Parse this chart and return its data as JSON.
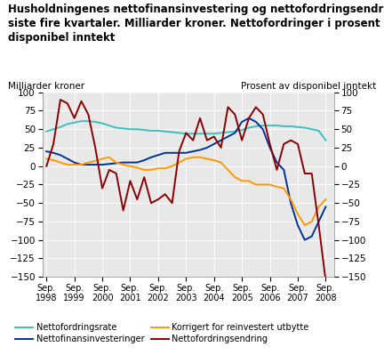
{
  "title_line1": "Husholdningenes nettofinansinvestering og nettofordringsendring",
  "title_line2": "siste fire kvartaler. Milliarder kroner. Nettofordringer i prosent av",
  "title_line3": "disponibel inntekt",
  "ylabel_left": "Milliarder kroner",
  "ylabel_right": "Prosent av disponibel inntekt",
  "x": [
    1998.75,
    1999.0,
    1999.25,
    1999.5,
    1999.75,
    2000.0,
    2000.25,
    2000.5,
    2000.75,
    2001.0,
    2001.25,
    2001.5,
    2001.75,
    2002.0,
    2002.25,
    2002.5,
    2002.75,
    2003.0,
    2003.25,
    2003.5,
    2003.75,
    2004.0,
    2004.25,
    2004.5,
    2004.75,
    2005.0,
    2005.25,
    2005.5,
    2005.75,
    2006.0,
    2006.25,
    2006.5,
    2006.75,
    2007.0,
    2007.25,
    2007.5,
    2007.75,
    2008.0,
    2008.25,
    2008.5,
    2008.75
  ],
  "nettofordringsrate": [
    47,
    50,
    53,
    57,
    59,
    61,
    61,
    60,
    58,
    55,
    52,
    51,
    50,
    50,
    49,
    48,
    48,
    47,
    46,
    45,
    44,
    44,
    44,
    44,
    44,
    45,
    46,
    47,
    49,
    52,
    54,
    55,
    55,
    55,
    54,
    54,
    53,
    52,
    50,
    48,
    35
  ],
  "nettofinansinvesteringer": [
    20,
    18,
    15,
    10,
    5,
    2,
    2,
    2,
    2,
    3,
    4,
    5,
    5,
    5,
    8,
    12,
    15,
    18,
    18,
    18,
    18,
    20,
    22,
    25,
    30,
    35,
    40,
    45,
    60,
    65,
    60,
    50,
    25,
    5,
    -5,
    -50,
    -80,
    -100,
    -95,
    -75,
    -55
  ],
  "korrigert": [
    10,
    8,
    5,
    2,
    2,
    2,
    5,
    7,
    10,
    12,
    5,
    2,
    0,
    -2,
    -5,
    -5,
    -3,
    -3,
    0,
    5,
    10,
    12,
    12,
    10,
    8,
    5,
    -5,
    -15,
    -20,
    -20,
    -25,
    -25,
    -25,
    -28,
    -30,
    -45,
    -65,
    -80,
    -75,
    -55,
    -45
  ],
  "nettofordringsendring": [
    0,
    30,
    90,
    85,
    65,
    88,
    70,
    25,
    -30,
    -5,
    -10,
    -60,
    -20,
    -45,
    -15,
    -50,
    -45,
    -38,
    -50,
    20,
    45,
    35,
    65,
    35,
    40,
    25,
    80,
    70,
    35,
    65,
    80,
    70,
    30,
    -5,
    30,
    35,
    30,
    -10,
    -10,
    -80,
    -155
  ],
  "ylim": [
    -150,
    100
  ],
  "yticks": [
    -150,
    -125,
    -100,
    -75,
    -50,
    -25,
    0,
    25,
    50,
    75,
    100
  ],
  "xlim": [
    1998.6,
    2009.05
  ],
  "xtick_years": [
    1998,
    1999,
    2000,
    2001,
    2002,
    2003,
    2004,
    2005,
    2006,
    2007,
    2008
  ],
  "colors": {
    "nettofordringsrate": "#40bfbf",
    "nettofinansinvesteringer": "#003399",
    "korrigert": "#ff9900",
    "nettofordringsendring": "#8b0000"
  },
  "legend": [
    {
      "label": "Nettofordringsrate",
      "color": "#40bfbf"
    },
    {
      "label": "Nettofinansinvesteringer",
      "color": "#003399"
    },
    {
      "label": "Korrigert for reinvestert utbytte",
      "color": "#ff9900"
    },
    {
      "label": "Nettofordringsendring",
      "color": "#8b0000"
    }
  ],
  "plot_bg": "#e8e8e8",
  "fig_bg": "#ffffff",
  "grid_color": "#ffffff",
  "title_fontsize": 8.5,
  "axis_label_fontsize": 7.5,
  "tick_fontsize": 7.5,
  "legend_fontsize": 7.0,
  "linewidth": 1.4
}
